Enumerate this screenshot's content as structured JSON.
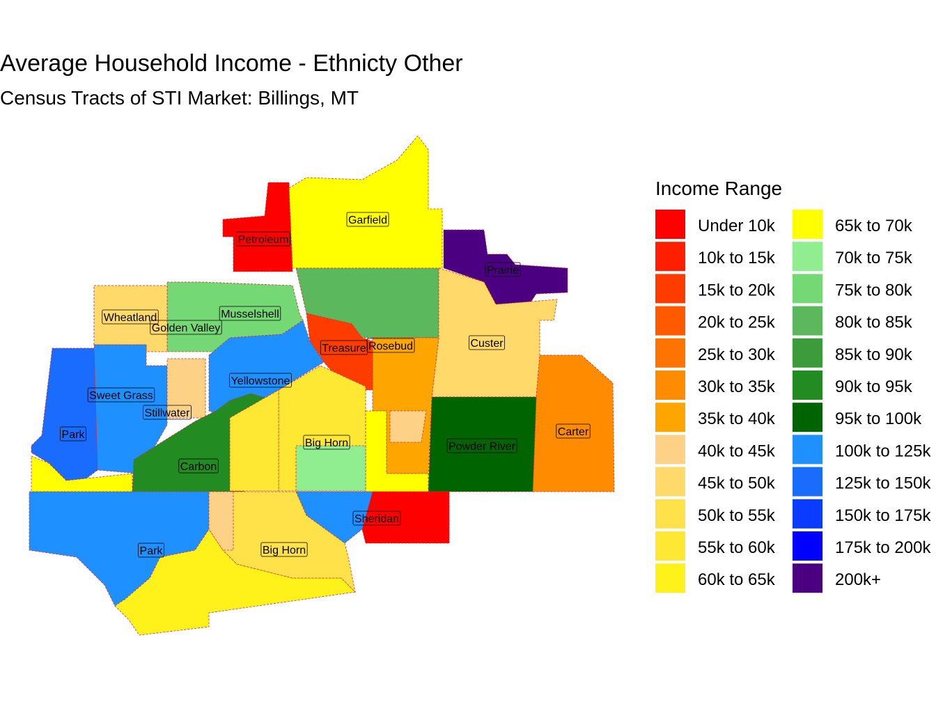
{
  "title": "Average Household Income - Ethnicty Other",
  "subtitle": "Census Tracts of STI Market: Billings, MT",
  "legend": {
    "title": "Income Range",
    "items": [
      {
        "label": "Under 10k",
        "color": "#ff0000"
      },
      {
        "label": "10k to 15k",
        "color": "#ff1e00"
      },
      {
        "label": "15k to 20k",
        "color": "#ff3c00"
      },
      {
        "label": "20k to 25k",
        "color": "#ff5a00"
      },
      {
        "label": "25k to 30k",
        "color": "#ff7300"
      },
      {
        "label": "30k to 35k",
        "color": "#ff8c00"
      },
      {
        "label": "35k to 40k",
        "color": "#ffa500"
      },
      {
        "label": "40k to 45k",
        "color": "#fdd287"
      },
      {
        "label": "45k to 50k",
        "color": "#ffda6b"
      },
      {
        "label": "50k to 55k",
        "color": "#ffe14a"
      },
      {
        "label": "55k to 60k",
        "color": "#ffe834"
      },
      {
        "label": "60k to 65k",
        "color": "#fff21a"
      },
      {
        "label": "65k to 70k",
        "color": "#ffff00"
      },
      {
        "label": "70k to 75k",
        "color": "#90ee90"
      },
      {
        "label": "75k to 80k",
        "color": "#74d874"
      },
      {
        "label": "80k to 85k",
        "color": "#5cb85c"
      },
      {
        "label": "85k to 90k",
        "color": "#3c9c3c"
      },
      {
        "label": "90k to 95k",
        "color": "#228b22"
      },
      {
        "label": "95k to 100k",
        "color": "#006400"
      },
      {
        "label": "100k to 125k",
        "color": "#1e90ff"
      },
      {
        "label": "125k to 150k",
        "color": "#1a6cff"
      },
      {
        "label": "150k to 175k",
        "color": "#0a3cff"
      },
      {
        "label": "175k to 200k",
        "color": "#0000ff"
      },
      {
        "label": "200k+",
        "color": "#4b0082"
      }
    ]
  },
  "map_labels": [
    "Petroleum",
    "Garfield",
    "Prairie",
    "Wheatland",
    "Golden Valley",
    "Musselshell",
    "Treasure",
    "Rosebud",
    "Custer",
    "Yellowstone",
    "Sweet Grass",
    "Stillwater",
    "Park",
    "Big Horn",
    "Powder River",
    "Carter",
    "Carbon",
    "Sheridan",
    "Park",
    "Big Horn"
  ]
}
